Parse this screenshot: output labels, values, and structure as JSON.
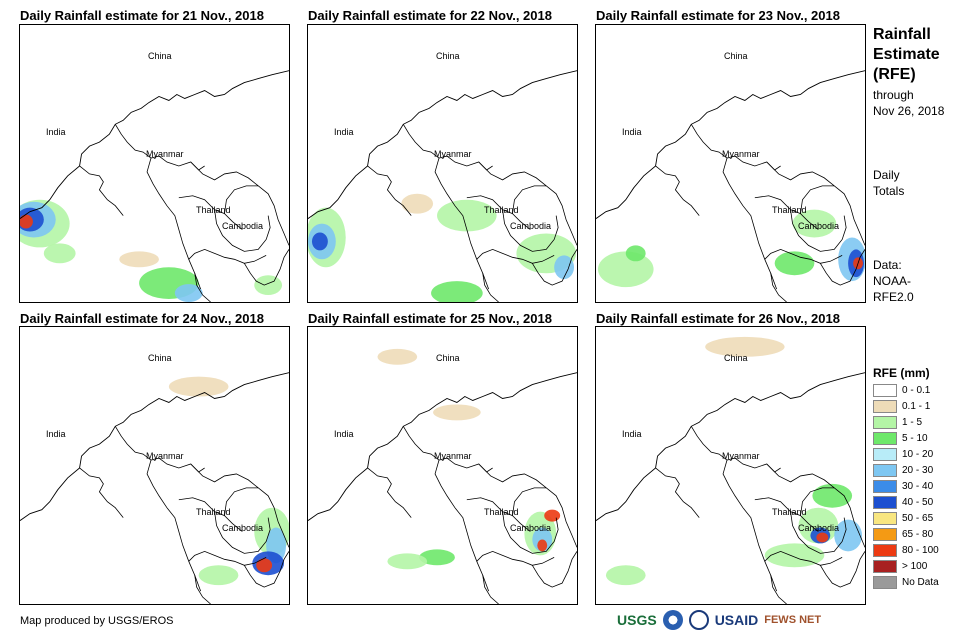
{
  "panels": [
    {
      "title": "Daily Rainfall estimate for 21 Nov., 2018"
    },
    {
      "title": "Daily Rainfall estimate for 22 Nov., 2018"
    },
    {
      "title": "Daily Rainfall estimate for 23 Nov., 2018"
    },
    {
      "title": "Daily Rainfall estimate for 24 Nov., 2018"
    },
    {
      "title": "Daily Rainfall estimate for 25 Nov., 2018"
    },
    {
      "title": "Daily Rainfall estimate for 26 Nov., 2018"
    }
  ],
  "country_labels": {
    "china": "China",
    "india": "India",
    "myanmar": "Myanmar",
    "thailand": "Thailand",
    "cambodia": "Cambodia"
  },
  "sidebar": {
    "title_line1": "Rainfall",
    "title_line2": "Estimate",
    "title_line3": "(RFE)",
    "through": "through",
    "through_date": "Nov 26, 2018",
    "daily": "Daily",
    "totals": "Totals",
    "data_label": "Data:",
    "data_source_1": "NOAA-",
    "data_source_2": "RFE2.0"
  },
  "legend": {
    "title": "RFE (mm)",
    "items": [
      {
        "label": "0 - 0.1",
        "color": "#ffffff"
      },
      {
        "label": "0.1 - 1",
        "color": "#eedcb8"
      },
      {
        "label": "1 - 5",
        "color": "#b4f5a6"
      },
      {
        "label": "5 - 10",
        "color": "#6ee86a"
      },
      {
        "label": "10 - 20",
        "color": "#b8ecf8"
      },
      {
        "label": "20 - 30",
        "color": "#7ec7f2"
      },
      {
        "label": "30 - 40",
        "color": "#3b8ce8"
      },
      {
        "label": "40 - 50",
        "color": "#1c4fd0"
      },
      {
        "label": "50 - 65",
        "color": "#f8e680"
      },
      {
        "label": "65 - 80",
        "color": "#f49a14"
      },
      {
        "label": "80 - 100",
        "color": "#ec3a12"
      },
      {
        "label": "> 100",
        "color": "#a82020"
      },
      {
        "label": "No Data",
        "color": "#9a9a9a"
      }
    ]
  },
  "credit": "Map produced by USGS/EROS",
  "logos": {
    "usgs": "USGS",
    "usaid": "USAID",
    "fewsnet": "FEWS NET"
  }
}
